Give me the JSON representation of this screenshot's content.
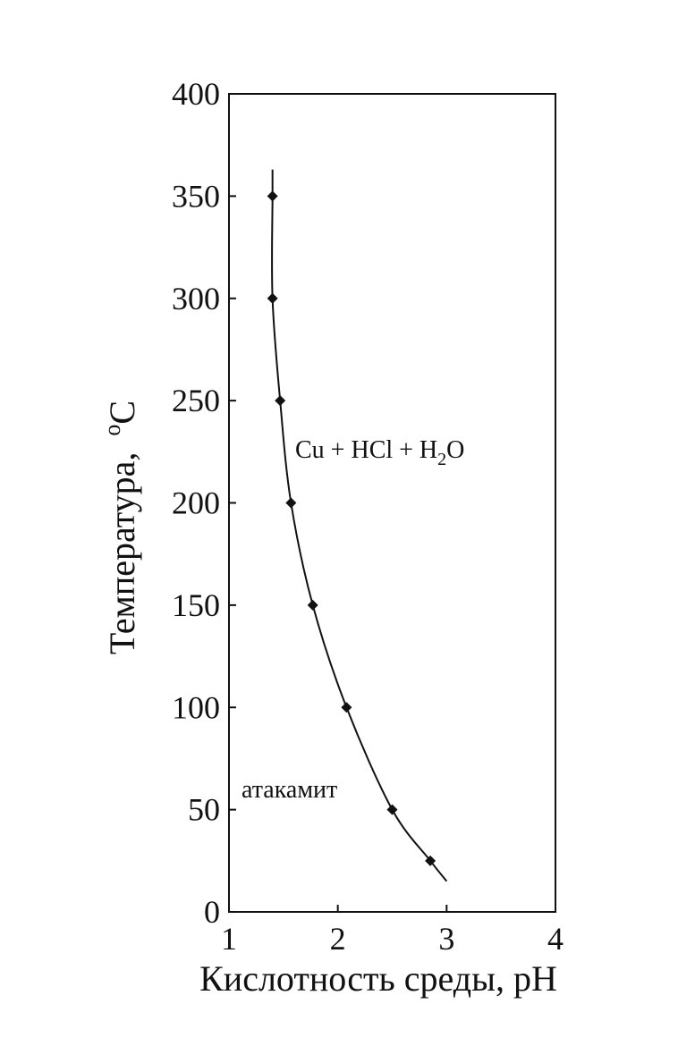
{
  "chart_data": {
    "type": "line",
    "xlabel": "Кислотность среды, pH",
    "ylabel_main": "Температура,",
    "ylabel_unit_sup": "o",
    "ylabel_unit": "C",
    "xlim": [
      1,
      4
    ],
    "ylim": [
      0,
      400
    ],
    "x_ticks": [
      "1",
      "2",
      "3",
      "4"
    ],
    "y_ticks": [
      "0",
      "50",
      "100",
      "150",
      "200",
      "250",
      "300",
      "350",
      "400"
    ],
    "grid": false,
    "series": [
      {
        "points": [
          {
            "x": 1.4,
            "y": 350
          },
          {
            "x": 1.4,
            "y": 300
          },
          {
            "x": 1.47,
            "y": 250
          },
          {
            "x": 1.57,
            "y": 200
          },
          {
            "x": 1.77,
            "y": 150
          },
          {
            "x": 2.08,
            "y": 100
          },
          {
            "x": 2.5,
            "y": 50
          },
          {
            "x": 2.85,
            "y": 25
          }
        ],
        "curve": [
          {
            "x": 1.4,
            "y": 363
          },
          {
            "x": 1.4,
            "y": 350
          },
          {
            "x": 1.4,
            "y": 300
          },
          {
            "x": 1.47,
            "y": 250
          },
          {
            "x": 1.57,
            "y": 200
          },
          {
            "x": 1.77,
            "y": 150
          },
          {
            "x": 2.08,
            "y": 100
          },
          {
            "x": 2.5,
            "y": 50
          },
          {
            "x": 2.85,
            "y": 25
          },
          {
            "x": 3.0,
            "y": 15
          }
        ]
      }
    ],
    "annotations": {
      "region_upper": {
        "cu": "Cu + HCl + H",
        "sub": "2",
        "o": "O"
      },
      "region_lower": "атакамит"
    },
    "colors": {
      "line": "#111111",
      "marker": "#111111",
      "frame": "#111111"
    }
  }
}
